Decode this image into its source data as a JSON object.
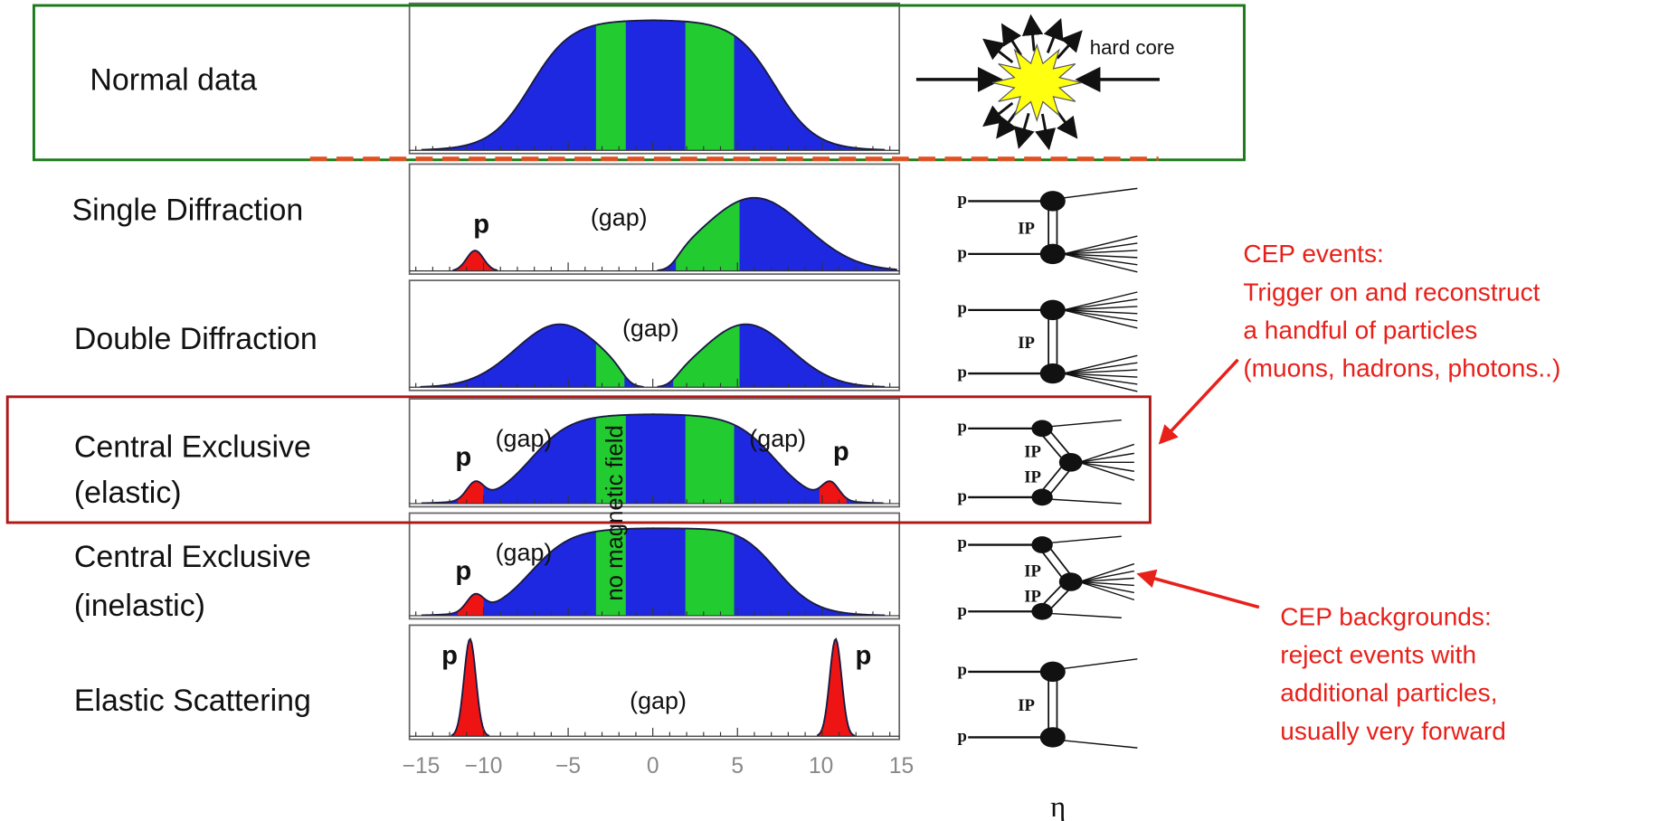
{
  "rows": [
    {
      "label": [
        "Normal data"
      ]
    },
    {
      "label": [
        "Single Diffraction"
      ],
      "marks": [
        "p",
        "(gap)"
      ]
    },
    {
      "label": [
        "Double Diffraction"
      ],
      "marks": [
        "(gap)"
      ]
    },
    {
      "label": [
        "Central Exclusive",
        "(elastic)"
      ],
      "marks": [
        "p",
        "(gap)",
        "(gap)",
        "p"
      ]
    },
    {
      "label": [
        "Central Exclusive",
        "(inelastic)"
      ],
      "marks": [
        "p",
        "(gap)"
      ]
    },
    {
      "label": [
        "Elastic Scattering"
      ],
      "marks": [
        "p",
        "(gap)",
        "p"
      ]
    }
  ],
  "hard_core_label": "hard core",
  "vertical_label": "no magnetic field",
  "axis": {
    "ticks": [
      "−15",
      "−10",
      "−5",
      "0",
      "5",
      "10",
      "15"
    ],
    "label": "η"
  },
  "diagrams": [
    {
      "labels": [
        "p",
        "IP",
        "p"
      ]
    },
    {
      "labels": [
        "p",
        "IP",
        "p"
      ]
    },
    {
      "labels": [
        "p",
        "IP",
        "IP",
        "p"
      ]
    },
    {
      "labels": [
        "p",
        "IP",
        "IP",
        "p"
      ]
    },
    {
      "labels": [
        "p",
        "IP",
        "p"
      ]
    }
  ],
  "callouts": [
    {
      "lines": [
        "CEP events:",
        "Trigger on and reconstruct",
        "a handful of particles",
        "(muons, hadrons, photons..)"
      ]
    },
    {
      "lines": [
        "CEP backgrounds:",
        "reject events with",
        "additional particles,",
        "usually very forward"
      ]
    }
  ]
}
